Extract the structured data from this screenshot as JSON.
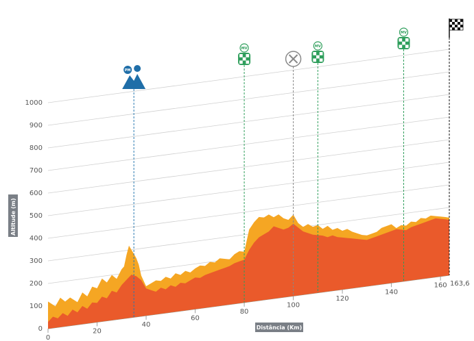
{
  "chart_data": {
    "type": "area",
    "title": "",
    "xlabel": "Distância (Km)",
    "ylabel": "Altitude (m)",
    "xlim": [
      0,
      163.6
    ],
    "ylim": [
      0,
      1000
    ],
    "x_ticks": [
      "0",
      "20",
      "40",
      "60",
      "80",
      "100",
      "120",
      "140",
      "160"
    ],
    "x_end_label": "163,6",
    "y_ticks": [
      "0",
      "100",
      "200",
      "300",
      "400",
      "500",
      "600",
      "700",
      "800",
      "900",
      "1000"
    ],
    "series": [
      {
        "fill": "#f5a623",
        "x": [
          0,
          3,
          5,
          7,
          9,
          12,
          14,
          16,
          18,
          20,
          22,
          24,
          26,
          28,
          30,
          31,
          32,
          33,
          34,
          35,
          36,
          37,
          38,
          40,
          42,
          44,
          46,
          48,
          50,
          52,
          54,
          56,
          58,
          60,
          62,
          64,
          66,
          68,
          70,
          72,
          74,
          76,
          78,
          80,
          82,
          84,
          86,
          88,
          90,
          92,
          94,
          96,
          98,
          100,
          102,
          104,
          106,
          108,
          110,
          112,
          114,
          116,
          118,
          120,
          122,
          124,
          126,
          128,
          130,
          132,
          134,
          136,
          138,
          140,
          142,
          144,
          146,
          148,
          150,
          152,
          154,
          156,
          158,
          160,
          162,
          163.6
        ],
        "y": [
          120,
          95,
          130,
          110,
          125,
          100,
          140,
          120,
          160,
          150,
          190,
          170,
          200,
          180,
          220,
          230,
          280,
          320,
          300,
          280,
          260,
          230,
          180,
          130,
          140,
          150,
          145,
          160,
          150,
          170,
          160,
          175,
          165,
          180,
          190,
          185,
          200,
          195,
          210,
          205,
          200,
          220,
          230,
          225,
          320,
          350,
          370,
          365,
          375,
          360,
          370,
          350,
          340,
          360,
          320,
          300,
          310,
          295,
          300,
          280,
          290,
          270,
          275,
          260,
          265,
          250,
          240,
          230,
          225,
          230,
          235,
          250,
          255,
          260,
          240,
          250,
          245,
          260,
          255,
          270,
          265,
          275,
          270,
          265,
          260,
          255
        ]
      },
      {
        "fill": "#ea5a2b",
        "x": [
          0,
          2,
          4,
          6,
          8,
          10,
          12,
          14,
          16,
          18,
          20,
          22,
          24,
          26,
          28,
          30,
          32,
          34,
          36,
          38,
          40,
          42,
          44,
          46,
          48,
          50,
          52,
          54,
          56,
          58,
          60,
          62,
          64,
          66,
          68,
          70,
          72,
          74,
          76,
          78,
          80,
          82,
          84,
          86,
          88,
          90,
          92,
          94,
          96,
          98,
          100,
          102,
          104,
          106,
          108,
          110,
          112,
          114,
          116,
          118,
          120,
          122,
          124,
          126,
          128,
          130,
          132,
          134,
          136,
          138,
          140,
          142,
          144,
          146,
          148,
          150,
          152,
          154,
          156,
          158,
          160,
          162,
          163.6
        ],
        "y": [
          30,
          50,
          40,
          60,
          45,
          70,
          55,
          80,
          65,
          90,
          85,
          110,
          100,
          130,
          120,
          150,
          170,
          190,
          180,
          160,
          120,
          110,
          100,
          115,
          105,
          120,
          110,
          125,
          120,
          130,
          140,
          135,
          145,
          150,
          155,
          160,
          165,
          170,
          180,
          185,
          190,
          230,
          260,
          280,
          290,
          300,
          320,
          310,
          300,
          305,
          320,
          300,
          280,
          270,
          260,
          255,
          250,
          240,
          245,
          235,
          230,
          225,
          220,
          215,
          210,
          205,
          210,
          215,
          220,
          225,
          230,
          235,
          230,
          225,
          235,
          240,
          245,
          250,
          255,
          260,
          255,
          250,
          245
        ]
      }
    ],
    "markers": [
      {
        "km": 35,
        "type": "climb",
        "label": "PM"
      },
      {
        "km": 80,
        "type": "sprint",
        "label": "MV"
      },
      {
        "km": 100,
        "type": "feed"
      },
      {
        "km": 110,
        "type": "sprint",
        "label": "MV"
      },
      {
        "km": 145,
        "type": "sprint",
        "label": "MV"
      },
      {
        "km": 163.6,
        "type": "finish"
      }
    ]
  }
}
